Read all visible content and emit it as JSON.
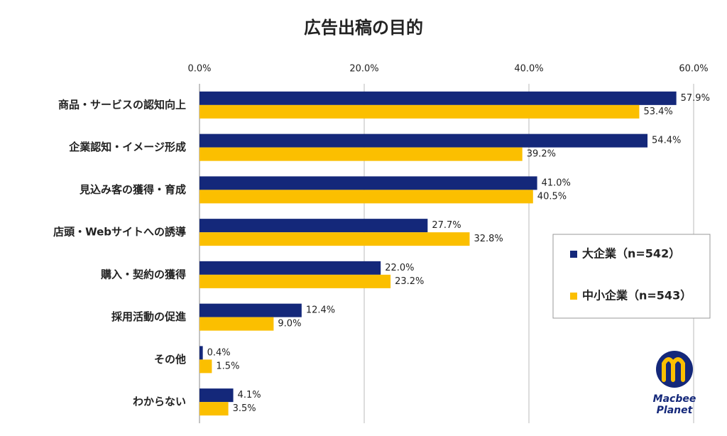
{
  "chart_data": {
    "type": "bar",
    "orientation": "horizontal",
    "title": "広告出稿の目的",
    "categories": [
      "商品・サービスの認知向上",
      "企業認知・イメージ形成",
      "見込み客の獲得・育成",
      "店頭・Webサイトへの誘導",
      "購入・契約の獲得",
      "採用活動の促進",
      "その他",
      "わからない"
    ],
    "series": [
      {
        "name": "大企業（n=542）",
        "color": "#14287a",
        "values": [
          57.9,
          54.4,
          41.0,
          27.7,
          22.0,
          12.4,
          0.4,
          4.1
        ],
        "value_labels": [
          "57.9%",
          "54.4%",
          "41.0%",
          "27.7%",
          "22.0%",
          "12.4%",
          "0.4%",
          "4.1%"
        ]
      },
      {
        "name": "中小企業（n=543）",
        "color": "#fbbf00",
        "values": [
          53.4,
          39.2,
          40.5,
          32.8,
          23.2,
          9.0,
          1.5,
          3.5
        ],
        "value_labels": [
          "53.4%",
          "39.2%",
          "40.5%",
          "32.8%",
          "23.2%",
          "9.0%",
          "1.5%",
          "3.5%"
        ]
      }
    ],
    "xlim": [
      0,
      60
    ],
    "xticks": [
      {
        "value": 0,
        "label": "0.0%"
      },
      {
        "value": 20,
        "label": "20.0%"
      },
      {
        "value": 40,
        "label": "40.0%"
      },
      {
        "value": 60,
        "label": "60.0%"
      }
    ],
    "grid": true,
    "legend": "right"
  },
  "logo": [
    "Macbee",
    "Planet"
  ]
}
